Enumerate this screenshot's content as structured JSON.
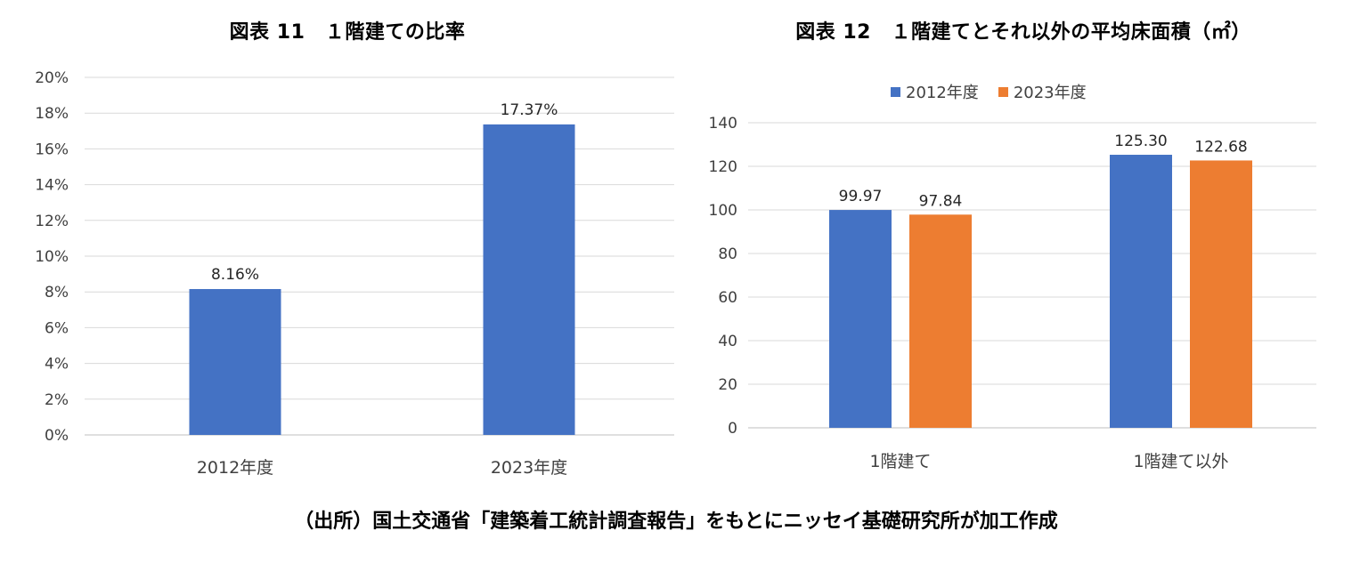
{
  "chart_data": [
    {
      "type": "bar",
      "title": "図表 11　１階建ての比率",
      "categories": [
        "2012年度",
        "2023年度"
      ],
      "values": [
        8.16,
        17.37
      ],
      "value_labels": [
        "8.16%",
        "17.37%"
      ],
      "ylim": [
        0,
        20
      ],
      "yticks": [
        "0%",
        "2%",
        "4%",
        "6%",
        "8%",
        "10%",
        "12%",
        "14%",
        "16%",
        "18%",
        "20%"
      ],
      "grid": true,
      "color": "#4472C4"
    },
    {
      "type": "bar",
      "title": "図表 12　１階建てとそれ以外の平均床面積（㎡）",
      "categories": [
        "1階建て",
        "1階建て以外"
      ],
      "series": [
        {
          "name": "2012年度",
          "values": [
            99.97,
            125.3
          ],
          "value_labels": [
            "99.97",
            "125.30"
          ],
          "color": "#4472C4"
        },
        {
          "name": "2023年度",
          "values": [
            97.84,
            122.68
          ],
          "value_labels": [
            "97.84",
            "122.68"
          ],
          "color": "#ED7D31"
        }
      ],
      "ylim": [
        0,
        140
      ],
      "yticks": [
        "0",
        "20",
        "40",
        "60",
        "80",
        "100",
        "120",
        "140"
      ],
      "legend": "top",
      "grid": true
    }
  ],
  "source": "（出所）国土交通省「建築着工統計調査報告」をもとにニッセイ基礎研究所が加工作成"
}
